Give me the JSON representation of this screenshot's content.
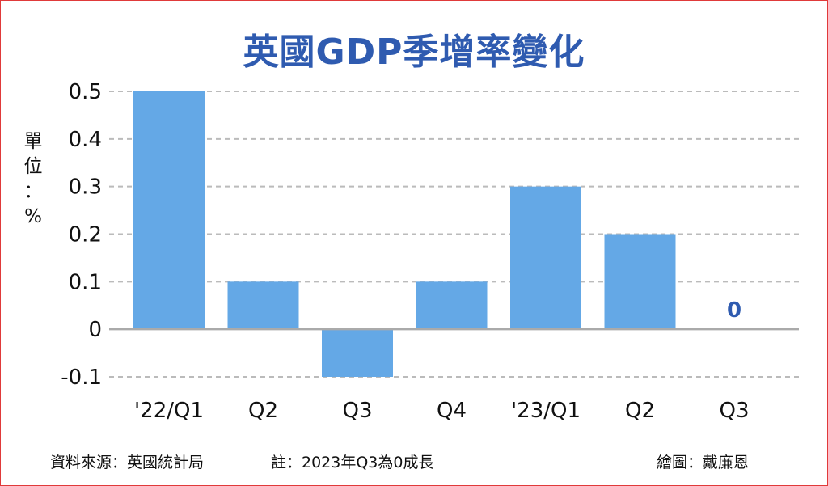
{
  "chart_data": {
    "type": "bar",
    "title": "英國GDP季增率變化",
    "unit_label": [
      "單",
      "位",
      "：",
      "%"
    ],
    "categories": [
      "'22/Q1",
      "Q2",
      "Q3",
      "Q4",
      "'23/Q1",
      "Q2",
      "Q3"
    ],
    "values": [
      0.5,
      0.1,
      -0.1,
      0.1,
      0.3,
      0.2,
      0
    ],
    "ylim": [
      -0.1,
      0.5
    ],
    "yticks": [
      "-0.1",
      "0",
      "0.1",
      "0.2",
      "0.3",
      "0.4",
      "0.5"
    ],
    "annotations": [
      {
        "category_index": 6,
        "text": "0"
      }
    ],
    "grid": true,
    "colors": {
      "bar": "#64a8e6",
      "annotation": "#2f5bb0",
      "grid": "#bbbbbb",
      "axis": "#aaaaaa"
    }
  },
  "footer": {
    "source": "資料來源：英國統計局",
    "note": "註：2023年Q3為0成長",
    "credit": "繪圖：戴廉恩"
  }
}
